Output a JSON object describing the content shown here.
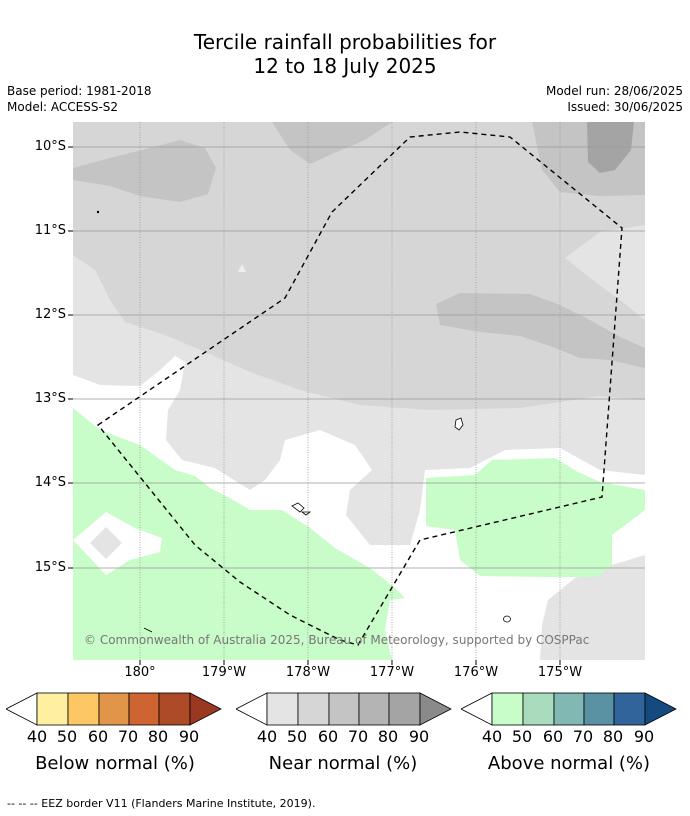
{
  "title_line1": "Tercile rainfall probabilities for",
  "title_line2": "12 to 18 July 2025",
  "base_period": "Base period: 1981-2018",
  "model": "Model: ACCESS-S2",
  "model_run": "Model run: 28/06/2025",
  "issued": "Issued: 30/06/2025",
  "lat_labels": [
    "10°S",
    "11°S",
    "12°S",
    "13°S",
    "14°S",
    "15°S"
  ],
  "lon_labels": [
    "180°",
    "179°W",
    "178°W",
    "177°W",
    "176°W",
    "175°W"
  ],
  "credit": "© Commonwealth of Australia 2025, Bureau of Meteorology, supported by COSPPac",
  "colorbars": [
    {
      "title": "Below normal (%)",
      "colors": [
        "#fef0a0",
        "#fdc864",
        "#e09548",
        "#cd6432",
        "#ad4a28",
        "#9a3822"
      ]
    },
    {
      "title": "Near normal (%)",
      "colors": [
        "#e4e4e4",
        "#d6d6d6",
        "#c4c4c4",
        "#b4b4b4",
        "#a4a4a4",
        "#8a8a8a"
      ]
    },
    {
      "title": "Above normal (%)",
      "colors": [
        "#c8fcc8",
        "#a8dcbc",
        "#82b8b4",
        "#5a92a4",
        "#30649a",
        "#154a80"
      ]
    }
  ],
  "tick_values": [
    "40",
    "50",
    "60",
    "70",
    "80",
    "90"
  ],
  "footer": "--  --  -- EEZ border V11 (Flanders Marine Institute, 2019)."
}
